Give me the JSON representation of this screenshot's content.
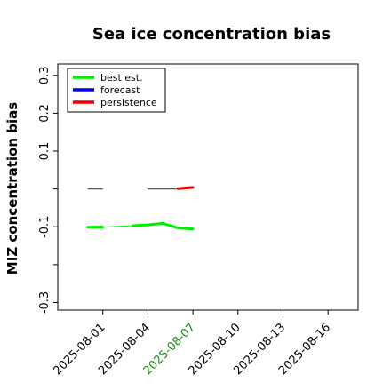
{
  "chart_data": {
    "type": "line",
    "title": "Sea ice concentration bias",
    "ylabel": "MIZ concentration bias",
    "xlabel": "",
    "ylim": [
      -0.32,
      0.33
    ],
    "y_ticks": [
      -0.3,
      -0.2,
      -0.1,
      0.0,
      0.1,
      0.2,
      0.3
    ],
    "y_tick_labels": [
      "-0.3",
      "",
      "-0.1",
      "",
      "0.1",
      "0.2",
      "0.3"
    ],
    "xlim": [
      "2025-07-29",
      "2025-08-18"
    ],
    "x_ticks": [
      "2025-08-01",
      "2025-08-04",
      "2025-08-07",
      "2025-08-10",
      "2025-08-13",
      "2025-08-16"
    ],
    "x_tick_colors": [
      "#000000",
      "#000000",
      "#1a8a1a",
      "#000000",
      "#000000",
      "#000000"
    ],
    "legend": {
      "placement": "top-left"
    },
    "series": [
      {
        "name": "best est.",
        "color": "#00ee00",
        "points": [
          {
            "x": "2025-07-31",
            "y": -0.101
          },
          {
            "x": "2025-08-01",
            "y": -0.101
          },
          {
            "x": "2025-08-03",
            "y": -0.097
          },
          {
            "x": "2025-08-04",
            "y": -0.095
          },
          {
            "x": "2025-08-05",
            "y": -0.091
          },
          {
            "x": "2025-08-06",
            "y": -0.103
          },
          {
            "x": "2025-08-07",
            "y": -0.106
          }
        ]
      },
      {
        "name": "forecast",
        "color": "#0000ee",
        "points": []
      },
      {
        "name": "persistence",
        "color": "#ee0000",
        "points": [
          {
            "x": "2025-08-06",
            "y": 0.001
          },
          {
            "x": "2025-08-07",
            "y": 0.004
          }
        ]
      }
    ],
    "zero_line": {
      "color": "#555555",
      "segments": [
        [
          "2025-07-31",
          "2025-08-01"
        ],
        [
          "2025-08-04",
          "2025-08-06"
        ]
      ]
    }
  }
}
